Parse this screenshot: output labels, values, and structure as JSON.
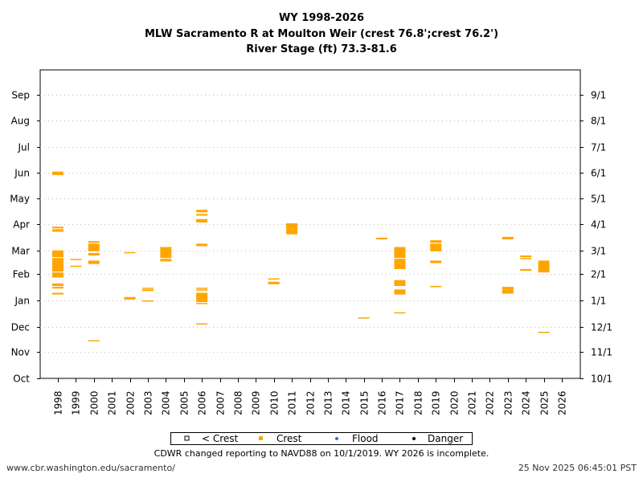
{
  "header": {
    "title_line1": "WY 1998-2026",
    "title_line2": "MLW Sacramento R at Moulton Weir (crest 76.8';crest 76.2')",
    "title_line3": "River Stage (ft) 73.3-81.6"
  },
  "legend": {
    "items": [
      {
        "marker": "hollow-square",
        "label": "< Crest",
        "color": "#000000"
      },
      {
        "marker": "square",
        "label": "Crest",
        "color": "#FFA500"
      },
      {
        "marker": "dot",
        "label": "Flood",
        "color": "#4169E1"
      },
      {
        "marker": "dot",
        "label": "Danger",
        "color": "#000000"
      }
    ]
  },
  "note": "CDWR changed reporting to NAVD88 on 10/1/2019. WY 2026 is incomplete.",
  "footer": {
    "source": "www.cbr.washington.edu/sacramento/",
    "timestamp": "25 Nov 2025 06:45:01 PST"
  },
  "chart_data": {
    "type": "scatter",
    "title": "WY 1998-2026 — MLW Sacramento R at Moulton Weir (crest 76.8';crest 76.2') — River Stage (ft) 73.3-81.6",
    "xlabel": "Water Year",
    "ylabel": "Day of water year",
    "x_categories": [
      "1998",
      "1999",
      "2000",
      "2001",
      "2002",
      "2003",
      "2004",
      "2005",
      "2006",
      "2007",
      "2008",
      "2009",
      "2010",
      "2011",
      "2012",
      "2013",
      "2014",
      "2015",
      "2016",
      "2017",
      "2018",
      "2019",
      "2020",
      "2021",
      "2022",
      "2023",
      "2024",
      "2025",
      "2026"
    ],
    "y_left_ticks": [
      "Oct",
      "Nov",
      "Dec",
      "Jan",
      "Feb",
      "Mar",
      "Apr",
      "May",
      "Jun",
      "Jul",
      "Aug",
      "Sep"
    ],
    "y_right_ticks": [
      "10/1",
      "11/1",
      "12/1",
      "1/1",
      "2/1",
      "3/1",
      "4/1",
      "5/1",
      "6/1",
      "7/1",
      "8/1",
      "9/1"
    ],
    "y_tick_days": [
      0,
      31,
      61,
      92,
      123,
      151,
      182,
      212,
      243,
      273,
      304,
      335
    ],
    "ylim_days": [
      0,
      365
    ],
    "grid": "horizontal dotted",
    "legend_position": "bottom-center",
    "series": [
      {
        "name": "Crest",
        "color": "#FFA500",
        "ranges": [
          {
            "year": "1998",
            "start": 240,
            "end": 244
          },
          {
            "year": "1998",
            "start": 177,
            "end": 179
          },
          {
            "year": "1998",
            "start": 173,
            "end": 176
          },
          {
            "year": "1998",
            "start": 143,
            "end": 151
          },
          {
            "year": "1998",
            "start": 126,
            "end": 142
          },
          {
            "year": "1998",
            "start": 119,
            "end": 125
          },
          {
            "year": "1998",
            "start": 109,
            "end": 112
          },
          {
            "year": "1998",
            "start": 106,
            "end": 108
          },
          {
            "year": "1998",
            "start": 99,
            "end": 101
          },
          {
            "year": "1999",
            "start": 140,
            "end": 141
          },
          {
            "year": "1999",
            "start": 132,
            "end": 133
          },
          {
            "year": "2000",
            "start": 160,
            "end": 162
          },
          {
            "year": "2000",
            "start": 150,
            "end": 159
          },
          {
            "year": "2000",
            "start": 145,
            "end": 148
          },
          {
            "year": "2000",
            "start": 135,
            "end": 139
          },
          {
            "year": "2000",
            "start": 44,
            "end": 45
          },
          {
            "year": "2002",
            "start": 148,
            "end": 149
          },
          {
            "year": "2002",
            "start": 93,
            "end": 96
          },
          {
            "year": "2003",
            "start": 106,
            "end": 107
          },
          {
            "year": "2003",
            "start": 103,
            "end": 105
          },
          {
            "year": "2003",
            "start": 91,
            "end": 92
          },
          {
            "year": "2004",
            "start": 142,
            "end": 155
          },
          {
            "year": "2004",
            "start": 138,
            "end": 141
          },
          {
            "year": "2006",
            "start": 196,
            "end": 199
          },
          {
            "year": "2006",
            "start": 192,
            "end": 194
          },
          {
            "year": "2006",
            "start": 184,
            "end": 188
          },
          {
            "year": "2006",
            "start": 156,
            "end": 159
          },
          {
            "year": "2006",
            "start": 106,
            "end": 107
          },
          {
            "year": "2006",
            "start": 104,
            "end": 105
          },
          {
            "year": "2006",
            "start": 90,
            "end": 101
          },
          {
            "year": "2006",
            "start": 88,
            "end": 89
          },
          {
            "year": "2006",
            "start": 64,
            "end": 65
          },
          {
            "year": "2010",
            "start": 117,
            "end": 118
          },
          {
            "year": "2010",
            "start": 111,
            "end": 114
          },
          {
            "year": "2011",
            "start": 176,
            "end": 183
          },
          {
            "year": "2011",
            "start": 170,
            "end": 176
          },
          {
            "year": "2015",
            "start": 71,
            "end": 72
          },
          {
            "year": "2016",
            "start": 164,
            "end": 166
          },
          {
            "year": "2017",
            "start": 142,
            "end": 155
          },
          {
            "year": "2017",
            "start": 129,
            "end": 141
          },
          {
            "year": "2017",
            "start": 109,
            "end": 116
          },
          {
            "year": "2017",
            "start": 99,
            "end": 105
          },
          {
            "year": "2017",
            "start": 77,
            "end": 78
          },
          {
            "year": "2019",
            "start": 160,
            "end": 163
          },
          {
            "year": "2019",
            "start": 150,
            "end": 159
          },
          {
            "year": "2019",
            "start": 136,
            "end": 139
          },
          {
            "year": "2019",
            "start": 108,
            "end": 109
          },
          {
            "year": "2023",
            "start": 164,
            "end": 167
          },
          {
            "year": "2023",
            "start": 105,
            "end": 108
          },
          {
            "year": "2023",
            "start": 100,
            "end": 105
          },
          {
            "year": "2024",
            "start": 143,
            "end": 145
          },
          {
            "year": "2024",
            "start": 141,
            "end": 142
          },
          {
            "year": "2024",
            "start": 127,
            "end": 129
          },
          {
            "year": "2025",
            "start": 125,
            "end": 139
          },
          {
            "year": "2025",
            "start": 54,
            "end": 55
          }
        ]
      },
      {
        "name": "< Crest",
        "color": "#000000",
        "ranges": []
      },
      {
        "name": "Flood",
        "color": "#4169E1",
        "ranges": []
      },
      {
        "name": "Danger",
        "color": "#000000",
        "ranges": []
      }
    ]
  }
}
